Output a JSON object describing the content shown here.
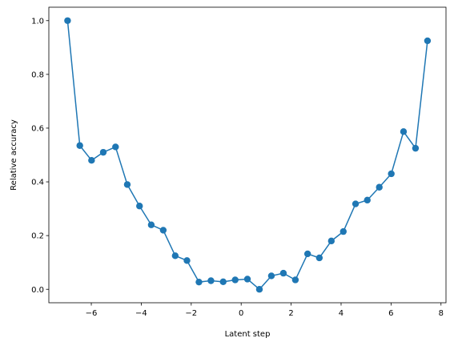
{
  "chart_data": {
    "type": "line",
    "title": "",
    "xlabel": "Latent step",
    "ylabel": "Relative accuracy",
    "xlim": [
      -7.7,
      8.2
    ],
    "ylim": [
      -0.05,
      1.05
    ],
    "xticks": [
      -6,
      -4,
      -2,
      0,
      2,
      4,
      6,
      8
    ],
    "xtick_labels": [
      "−6",
      "−4",
      "−2",
      "0",
      "2",
      "4",
      "6",
      "8"
    ],
    "yticks": [
      0.0,
      0.2,
      0.4,
      0.6,
      0.8,
      1.0
    ],
    "ytick_labels": [
      "0.0",
      "0.2",
      "0.4",
      "0.6",
      "0.8",
      "1.0"
    ],
    "grid": false,
    "legend": null,
    "series": [
      {
        "color": "#1f77b4",
        "marker": "circle",
        "x": [
          -6.95,
          -6.46,
          -5.99,
          -5.52,
          -5.03,
          -4.56,
          -4.07,
          -3.6,
          -3.12,
          -2.64,
          -2.17,
          -1.69,
          -1.21,
          -0.72,
          -0.24,
          0.25,
          0.73,
          1.21,
          1.69,
          2.17,
          2.66,
          3.13,
          3.61,
          4.09,
          4.58,
          5.05,
          5.53,
          6.01,
          6.5,
          6.98,
          7.46
        ],
        "y": [
          1.0,
          0.535,
          0.48,
          0.51,
          0.53,
          0.39,
          0.31,
          0.24,
          0.22,
          0.125,
          0.107,
          0.027,
          0.032,
          0.028,
          0.035,
          0.038,
          0.0,
          0.05,
          0.06,
          0.035,
          0.132,
          0.117,
          0.18,
          0.215,
          0.318,
          0.332,
          0.38,
          0.43,
          0.587,
          0.525,
          0.925
        ]
      }
    ]
  }
}
